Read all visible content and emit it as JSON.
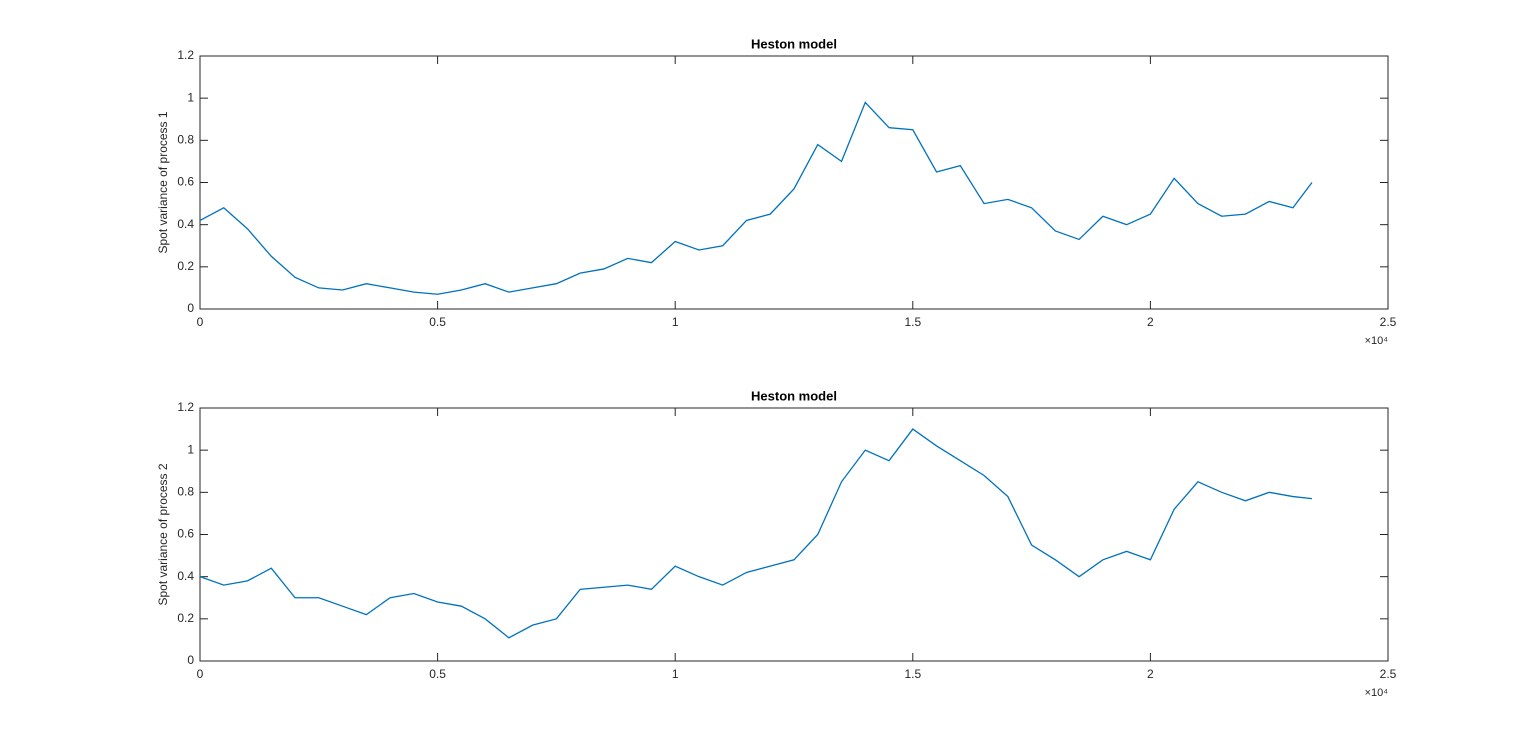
{
  "chart_data": [
    {
      "type": "line",
      "title": "Heston model",
      "y_label": "Spot variance of process 1",
      "x_multiplier": "×10⁴",
      "color": "#0072bd",
      "x": [
        0,
        500,
        1000,
        1500,
        2000,
        2500,
        3000,
        3500,
        4000,
        4500,
        5000,
        5500,
        6000,
        6500,
        7000,
        7500,
        8000,
        8500,
        9000,
        9500,
        10000,
        10500,
        11000,
        11500,
        12000,
        12500,
        13000,
        13500,
        14000,
        14500,
        15000,
        15500,
        16000,
        16500,
        17000,
        17500,
        18000,
        18500,
        19000,
        19500,
        20000,
        20500,
        21000,
        21500,
        22000,
        22500,
        23000,
        23400
      ],
      "values": [
        0.42,
        0.48,
        0.38,
        0.25,
        0.15,
        0.1,
        0.09,
        0.12,
        0.1,
        0.08,
        0.07,
        0.09,
        0.12,
        0.08,
        0.1,
        0.12,
        0.17,
        0.19,
        0.24,
        0.22,
        0.32,
        0.28,
        0.3,
        0.42,
        0.45,
        0.57,
        0.78,
        0.7,
        0.98,
        0.86,
        0.85,
        0.65,
        0.68,
        0.5,
        0.52,
        0.48,
        0.37,
        0.33,
        0.44,
        0.4,
        0.45,
        0.62,
        0.5,
        0.44,
        0.45,
        0.51,
        0.48,
        0.6
      ],
      "xlim": [
        0,
        25000
      ],
      "xticks": [
        {
          "value": 0,
          "label": "0"
        },
        {
          "value": 5000,
          "label": "0.5"
        },
        {
          "value": 10000,
          "label": "1"
        },
        {
          "value": 15000,
          "label": "1.5"
        },
        {
          "value": 20000,
          "label": "2"
        },
        {
          "value": 25000,
          "label": "2.5"
        }
      ],
      "ylim": [
        0,
        1.2
      ],
      "yticks": [
        0,
        0.2,
        0.4,
        0.6,
        0.8,
        1,
        1.2
      ]
    },
    {
      "type": "line",
      "title": "Heston model",
      "y_label": "Spot variance of process 2",
      "x_multiplier": "×10⁴",
      "color": "#0072bd",
      "x": [
        0,
        500,
        1000,
        1500,
        2000,
        2500,
        3000,
        3500,
        4000,
        4500,
        5000,
        5500,
        6000,
        6500,
        7000,
        7500,
        8000,
        8500,
        9000,
        9500,
        10000,
        10500,
        11000,
        11500,
        12000,
        12500,
        13000,
        13500,
        14000,
        14500,
        15000,
        15500,
        16000,
        16500,
        17000,
        17500,
        18000,
        18500,
        19000,
        19500,
        20000,
        20500,
        21000,
        21500,
        22000,
        22500,
        23000,
        23400
      ],
      "values": [
        0.4,
        0.36,
        0.38,
        0.44,
        0.3,
        0.3,
        0.26,
        0.22,
        0.3,
        0.32,
        0.28,
        0.26,
        0.2,
        0.11,
        0.17,
        0.2,
        0.34,
        0.35,
        0.36,
        0.34,
        0.45,
        0.4,
        0.36,
        0.42,
        0.45,
        0.48,
        0.6,
        0.85,
        1.0,
        0.95,
        1.1,
        1.02,
        0.95,
        0.88,
        0.78,
        0.55,
        0.48,
        0.4,
        0.48,
        0.52,
        0.48,
        0.72,
        0.85,
        0.8,
        0.76,
        0.8,
        0.78,
        0.77
      ],
      "xlim": [
        0,
        25000
      ],
      "xticks": [
        {
          "value": 0,
          "label": "0"
        },
        {
          "value": 5000,
          "label": "0.5"
        },
        {
          "value": 10000,
          "label": "1"
        },
        {
          "value": 15000,
          "label": "1.5"
        },
        {
          "value": 20000,
          "label": "2"
        },
        {
          "value": 25000,
          "label": "2.5"
        }
      ],
      "ylim": [
        0,
        1.2
      ],
      "yticks": [
        0,
        0.2,
        0.4,
        0.6,
        0.8,
        1,
        1.2
      ]
    }
  ]
}
